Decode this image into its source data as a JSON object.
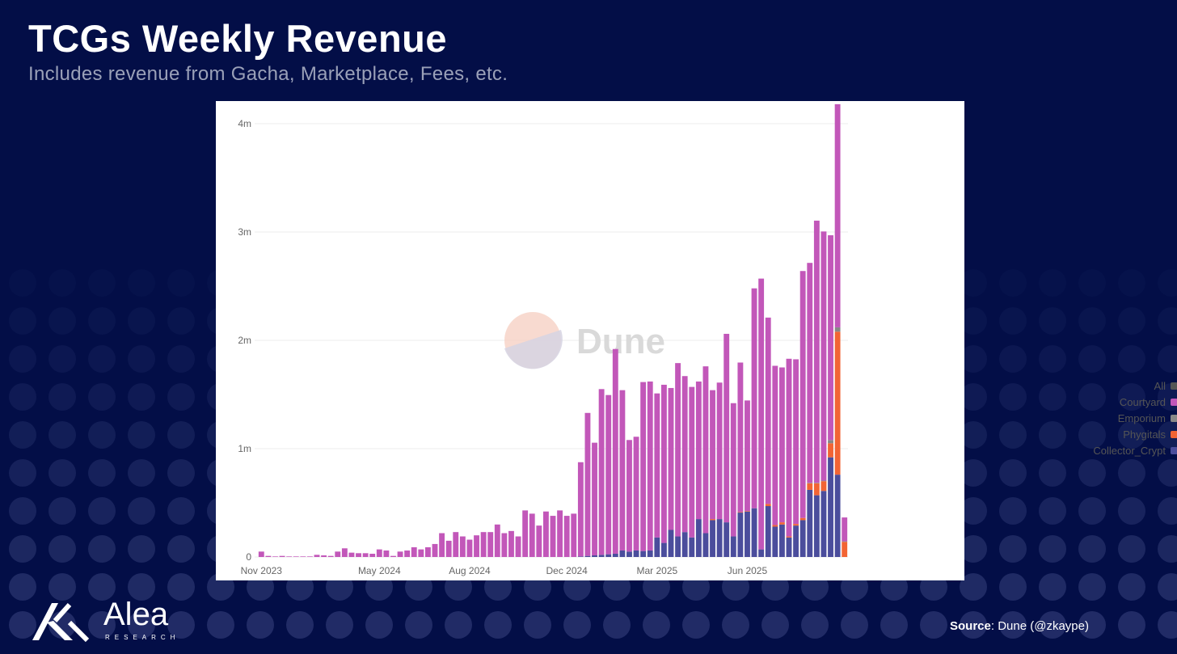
{
  "header": {
    "title": "TCGs Weekly Revenue",
    "subtitle": "Includes revenue from Gacha, Marketplace, Fees, etc."
  },
  "watermark": {
    "text": "Dune"
  },
  "legend": {
    "items": [
      {
        "label": "All",
        "color": "#555555"
      },
      {
        "label": "Courtyard",
        "color": "#c257b9"
      },
      {
        "label": "Emporium",
        "color": "#888888"
      },
      {
        "label": "Phygitals",
        "color": "#f26434"
      },
      {
        "label": "Collector_Crypt",
        "color": "#4b4d9c"
      }
    ]
  },
  "footer": {
    "source_label": "Source",
    "source_value": ": Dune (@zkaype)",
    "brand_name": "Alea",
    "brand_sub": "RESEARCH"
  },
  "chart_data": {
    "type": "bar",
    "stacked": true,
    "title": "TCGs Weekly Revenue",
    "xlabel": "",
    "ylabel": "",
    "ylim": [
      0,
      4200000
    ],
    "y_ticks": [
      {
        "value": 0,
        "label": "0"
      },
      {
        "value": 1000000,
        "label": "1m"
      },
      {
        "value": 2000000,
        "label": "2m"
      },
      {
        "value": 3000000,
        "label": "3m"
      },
      {
        "value": 4000000,
        "label": "4m"
      }
    ],
    "x_ticks": [
      {
        "index": 0,
        "label": "Nov 2023"
      },
      {
        "index": 17,
        "label": "May 2024"
      },
      {
        "index": 30,
        "label": "Aug 2024"
      },
      {
        "index": 44,
        "label": "Dec 2024"
      },
      {
        "index": 57,
        "label": "Mar 2025"
      },
      {
        "index": 70,
        "label": "Jun 2025"
      }
    ],
    "series": [
      {
        "name": "Collector_Crypt",
        "color": "#4b4d9c",
        "values": [
          0,
          0,
          0,
          0,
          0,
          0,
          0,
          0,
          0,
          0,
          0,
          0,
          0,
          0,
          0,
          0,
          0,
          0,
          0,
          0,
          0,
          0,
          0,
          0,
          0,
          0,
          0,
          0,
          0,
          0,
          0,
          0,
          0,
          0,
          0,
          0,
          0,
          0,
          0,
          0,
          0,
          0,
          0,
          0,
          0,
          0,
          5000,
          10000,
          15000,
          20000,
          25000,
          30000,
          60000,
          50000,
          60000,
          55000,
          60000,
          180000,
          130000,
          250000,
          190000,
          230000,
          180000,
          350000,
          220000,
          340000,
          350000,
          320000,
          190000,
          410000,
          420000,
          450000,
          70000,
          470000,
          280000,
          300000,
          180000,
          290000,
          340000,
          620000,
          570000,
          610000,
          920000,
          760000,
          0
        ]
      },
      {
        "name": "Phygitals",
        "color": "#f26434",
        "values": [
          0,
          0,
          0,
          0,
          0,
          0,
          0,
          0,
          0,
          0,
          0,
          0,
          0,
          0,
          0,
          0,
          0,
          0,
          0,
          0,
          0,
          0,
          0,
          0,
          0,
          0,
          0,
          0,
          0,
          0,
          0,
          0,
          0,
          0,
          0,
          0,
          0,
          0,
          0,
          0,
          0,
          0,
          0,
          0,
          0,
          0,
          0,
          0,
          0,
          0,
          0,
          0,
          0,
          0,
          0,
          0,
          0,
          0,
          0,
          0,
          0,
          0,
          0,
          0,
          0,
          10000,
          0,
          0,
          0,
          5000,
          5000,
          0,
          0,
          20000,
          15000,
          20000,
          10000,
          15000,
          20000,
          60000,
          110000,
          90000,
          130000,
          1320000,
          140000
        ]
      },
      {
        "name": "Emporium",
        "color": "#888888",
        "values": [
          0,
          0,
          0,
          0,
          0,
          0,
          0,
          0,
          0,
          0,
          0,
          0,
          0,
          0,
          0,
          0,
          0,
          0,
          0,
          0,
          0,
          0,
          0,
          0,
          0,
          0,
          0,
          0,
          0,
          0,
          0,
          0,
          0,
          0,
          0,
          0,
          0,
          0,
          0,
          0,
          0,
          0,
          0,
          0,
          0,
          0,
          0,
          0,
          0,
          0,
          0,
          0,
          0,
          0,
          0,
          0,
          0,
          0,
          0,
          0,
          0,
          0,
          0,
          0,
          0,
          0,
          0,
          0,
          0,
          0,
          0,
          0,
          0,
          0,
          0,
          0,
          0,
          0,
          0,
          5000,
          5000,
          5000,
          30000,
          40000,
          5000
        ]
      },
      {
        "name": "Courtyard",
        "color": "#c257b9",
        "values": [
          50000,
          10000,
          5000,
          10000,
          5000,
          5000,
          5000,
          5000,
          20000,
          15000,
          10000,
          50000,
          80000,
          40000,
          35000,
          35000,
          30000,
          70000,
          60000,
          10000,
          50000,
          60000,
          90000,
          70000,
          90000,
          120000,
          220000,
          150000,
          230000,
          190000,
          160000,
          200000,
          230000,
          230000,
          300000,
          220000,
          240000,
          190000,
          430000,
          400000,
          290000,
          420000,
          380000,
          430000,
          380000,
          400000,
          870000,
          1320000,
          1040000,
          1530000,
          1470000,
          1890000,
          1480000,
          1030000,
          1050000,
          1560000,
          1560000,
          1330000,
          1460000,
          1310000,
          1600000,
          1440000,
          1390000,
          1270000,
          1540000,
          1190000,
          1260000,
          1740000,
          1230000,
          1380000,
          1020000,
          2030000,
          2500000,
          1720000,
          1470000,
          1430000,
          1640000,
          1520000,
          2280000,
          2030000,
          2420000,
          2300000,
          1890000,
          2060000,
          220000
        ]
      }
    ]
  }
}
